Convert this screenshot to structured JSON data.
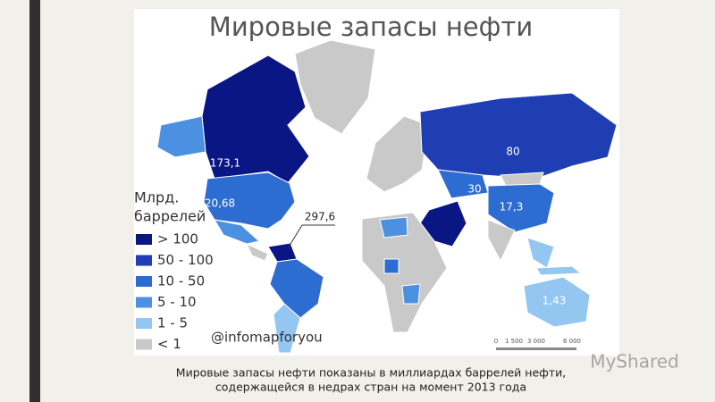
{
  "title": "Мировые запасы нефти",
  "legend": {
    "title": [
      "Млрд.",
      "баррелей"
    ],
    "items": [
      {
        "label": "> 100",
        "color": "#0b1685"
      },
      {
        "label": "50 - 100",
        "color": "#1f3eb3"
      },
      {
        "label": "10 - 50",
        "color": "#2d6cd0"
      },
      {
        "label": "5 - 10",
        "color": "#4c90e2"
      },
      {
        "label": "1 - 5",
        "color": "#93c6f1"
      },
      {
        "label": "< 1",
        "color": "#c9c9c9"
      }
    ]
  },
  "map_labels": [
    "173,1",
    "20,68",
    "297,6",
    "80",
    "30",
    "17,3",
    "1,43"
  ],
  "credit": "@infomapforyou",
  "scale": [
    "0",
    "1 500",
    "3 000",
    "6 000"
  ],
  "caption": [
    "Мировые запасы нефти показаны в миллиардах баррелей нефти,",
    "содержащейся в недрах стран на момент 2013 года"
  ],
  "watermark": "MyShared"
}
